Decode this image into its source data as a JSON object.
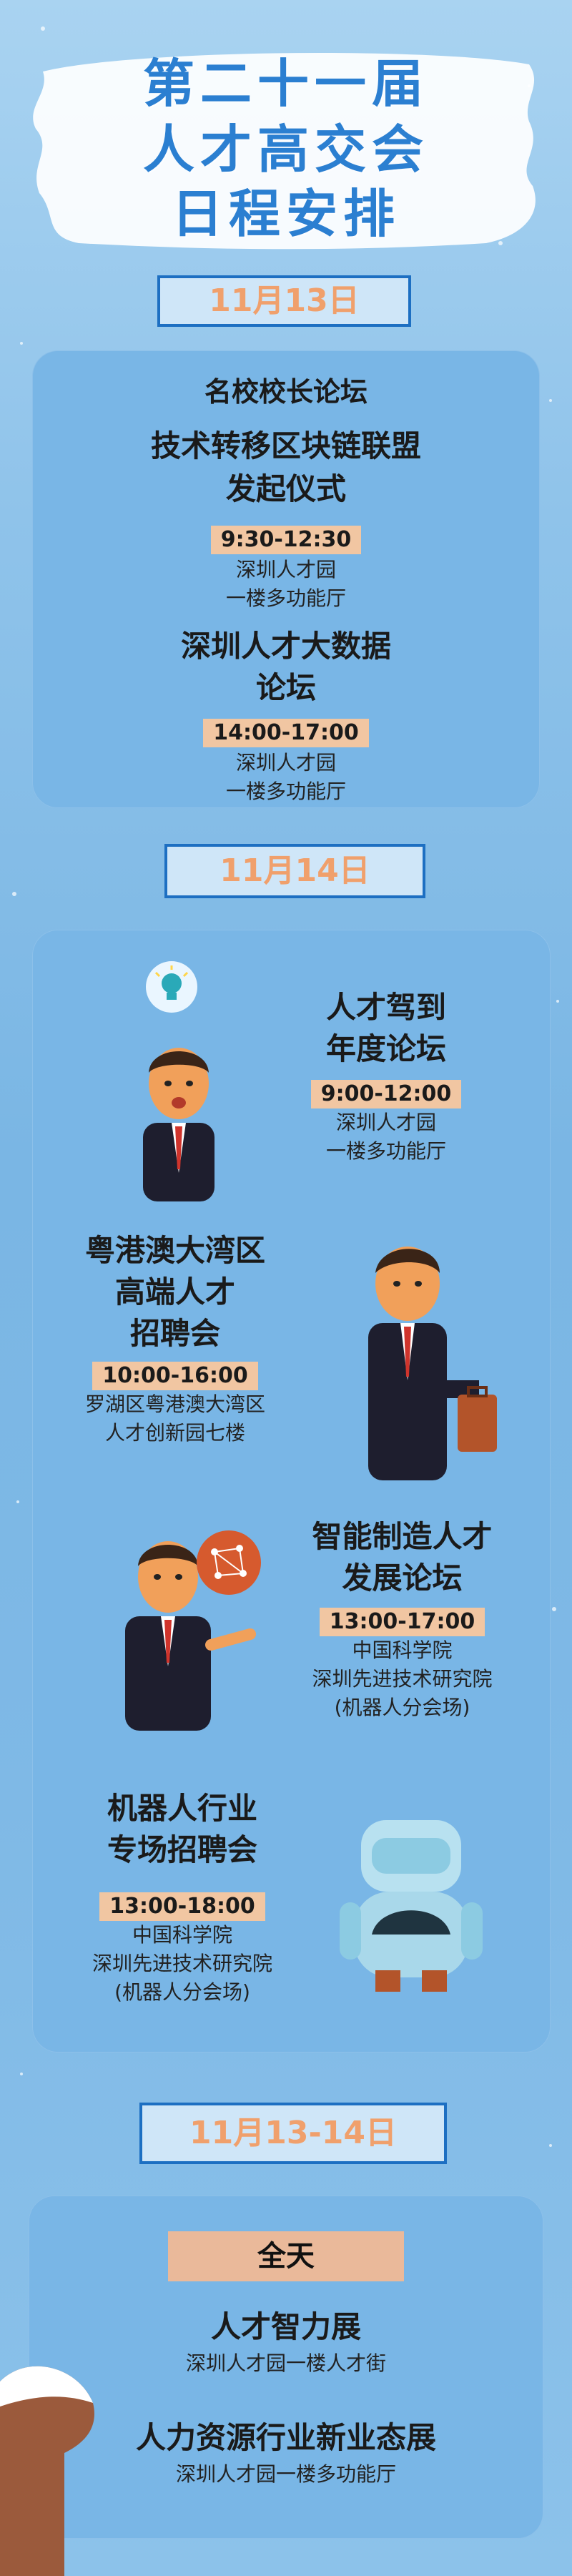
{
  "header": {
    "title_line1": "第二十一届",
    "title_line2": "人才高交会",
    "title_line3": "日程安排"
  },
  "day1": {
    "date": "11月13日",
    "events": [
      {
        "title": "名校校长论坛"
      },
      {
        "title_line1": "技术转移区块链联盟",
        "title_line2": "发起仪式",
        "time": "9:30-12:30",
        "place_line1": "深圳人才园",
        "place_line2": "一楼多功能厅"
      },
      {
        "title_line1": "深圳人才大数据",
        "title_line2": "论坛",
        "time": "14:00-17:00",
        "place_line1": "深圳人才园",
        "place_line2": "一楼多功能厅"
      }
    ]
  },
  "day2": {
    "date": "11月14日",
    "events": [
      {
        "title_line1": "人才驾到",
        "title_line2": "年度论坛",
        "time": "9:00-12:00",
        "place_line1": "深圳人才园",
        "place_line2": "一楼多功能厅"
      },
      {
        "title_line1": "粤港澳大湾区",
        "title_line2": "高端人才",
        "title_line3": "招聘会",
        "time": "10:00-16:00",
        "place_line1": "罗湖区粤港澳大湾区",
        "place_line2": "人才创新园七楼"
      },
      {
        "title_line1": "智能制造人才",
        "title_line2": "发展论坛",
        "time": "13:00-17:00",
        "place_line1": "中国科学院",
        "place_line2": "深圳先进技术研究院",
        "place_line3": "(机器人分会场)"
      },
      {
        "title_line1": "机器人行业",
        "title_line2": "专场招聘会",
        "time": "13:00-18:00",
        "place_line1": "中国科学院",
        "place_line2": "深圳先进技术研究院",
        "place_line3": "(机器人分会场)"
      }
    ]
  },
  "day3": {
    "date": "11月13-14日",
    "badge": "全天",
    "events": [
      {
        "title": "人才智力展",
        "place": "深圳人才园一楼人才街"
      },
      {
        "title": "人力资源行业新业态展",
        "place": "深圳人才园一楼多功能厅"
      }
    ]
  },
  "colors": {
    "title_blue": "#2b7fd1",
    "date_border": "#1d6fc2",
    "date_text": "#f0a06c",
    "panel": "#79b6e6",
    "time_bg": "#f1c6a2"
  },
  "icons": [
    "lightbulb-icon",
    "network-icon",
    "businessman-illustration",
    "robot-illustration",
    "briefcase-icon"
  ]
}
